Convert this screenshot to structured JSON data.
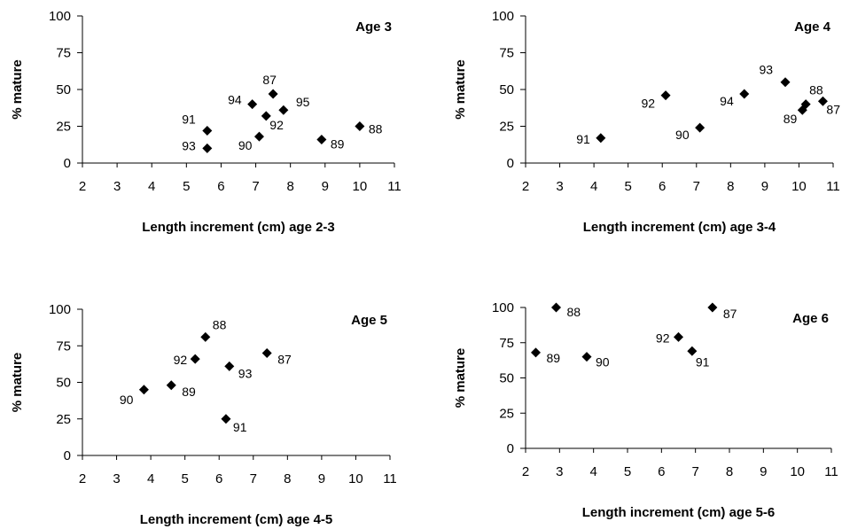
{
  "chart_data": [
    {
      "type": "scatter",
      "title": "Age 3",
      "xlabel": "Length increment (cm) age 2-3",
      "ylabel": "% mature",
      "xlim": [
        2,
        11
      ],
      "ylim": [
        0,
        100
      ],
      "xticks": [
        "2",
        "3",
        "4",
        "5",
        "6",
        "7",
        "8",
        "9",
        "10",
        "11"
      ],
      "yticks": [
        "0",
        "25",
        "50",
        "75",
        "100"
      ],
      "grid": false,
      "points": [
        {
          "x": 5.6,
          "y": 22,
          "label": "91"
        },
        {
          "x": 5.6,
          "y": 10,
          "label": "93"
        },
        {
          "x": 6.9,
          "y": 40,
          "label": "94"
        },
        {
          "x": 7.5,
          "y": 47,
          "label": "87"
        },
        {
          "x": 7.3,
          "y": 32,
          "label": "92"
        },
        {
          "x": 7.1,
          "y": 18,
          "label": "90"
        },
        {
          "x": 7.8,
          "y": 36,
          "label": "95"
        },
        {
          "x": 8.9,
          "y": 16,
          "label": "89"
        },
        {
          "x": 10.0,
          "y": 25,
          "label": "88"
        }
      ]
    },
    {
      "type": "scatter",
      "title": "Age 4",
      "xlabel": "Length increment (cm) age 3-4",
      "ylabel": "% mature",
      "xlim": [
        2,
        11
      ],
      "ylim": [
        0,
        100
      ],
      "xticks": [
        "2",
        "3",
        "4",
        "5",
        "6",
        "7",
        "8",
        "9",
        "10",
        "11"
      ],
      "yticks": [
        "0",
        "25",
        "50",
        "75",
        "100"
      ],
      "grid": false,
      "points": [
        {
          "x": 4.2,
          "y": 17,
          "label": "91"
        },
        {
          "x": 6.1,
          "y": 46,
          "label": "92"
        },
        {
          "x": 7.1,
          "y": 24,
          "label": "90"
        },
        {
          "x": 8.4,
          "y": 47,
          "label": "94"
        },
        {
          "x": 9.6,
          "y": 55,
          "label": "93"
        },
        {
          "x": 10.2,
          "y": 40,
          "label": "88"
        },
        {
          "x": 10.1,
          "y": 36,
          "label": "89"
        },
        {
          "x": 10.7,
          "y": 42,
          "label": "87"
        }
      ]
    },
    {
      "type": "scatter",
      "title": "Age 5",
      "xlabel": "Length increment (cm) age 4-5",
      "ylabel": "% mature",
      "xlim": [
        2,
        11
      ],
      "ylim": [
        0,
        100
      ],
      "xticks": [
        "2",
        "3",
        "4",
        "5",
        "6",
        "7",
        "8",
        "9",
        "10",
        "11"
      ],
      "yticks": [
        "0",
        "25",
        "50",
        "75",
        "100"
      ],
      "grid": false,
      "points": [
        {
          "x": 3.8,
          "y": 45,
          "label": "90"
        },
        {
          "x": 4.6,
          "y": 48,
          "label": "89"
        },
        {
          "x": 5.3,
          "y": 66,
          "label": "92"
        },
        {
          "x": 5.6,
          "y": 81,
          "label": "88"
        },
        {
          "x": 6.3,
          "y": 61,
          "label": "93"
        },
        {
          "x": 7.4,
          "y": 70,
          "label": "87"
        },
        {
          "x": 6.2,
          "y": 25,
          "label": "91"
        }
      ]
    },
    {
      "type": "scatter",
      "title": "Age 6",
      "xlabel": "Length increment (cm) age 5-6",
      "ylabel": "% mature",
      "xlim": [
        2,
        11
      ],
      "ylim": [
        0,
        100
      ],
      "xticks": [
        "2",
        "3",
        "4",
        "5",
        "6",
        "7",
        "8",
        "9",
        "10",
        "11"
      ],
      "yticks": [
        "0",
        "25",
        "50",
        "75",
        "100"
      ],
      "grid": false,
      "points": [
        {
          "x": 2.3,
          "y": 68,
          "label": "89"
        },
        {
          "x": 2.9,
          "y": 100,
          "label": "88"
        },
        {
          "x": 3.8,
          "y": 65,
          "label": "90"
        },
        {
          "x": 6.5,
          "y": 79,
          "label": "92"
        },
        {
          "x": 6.9,
          "y": 69,
          "label": "91"
        },
        {
          "x": 7.5,
          "y": 100,
          "label": "87"
        }
      ]
    }
  ]
}
